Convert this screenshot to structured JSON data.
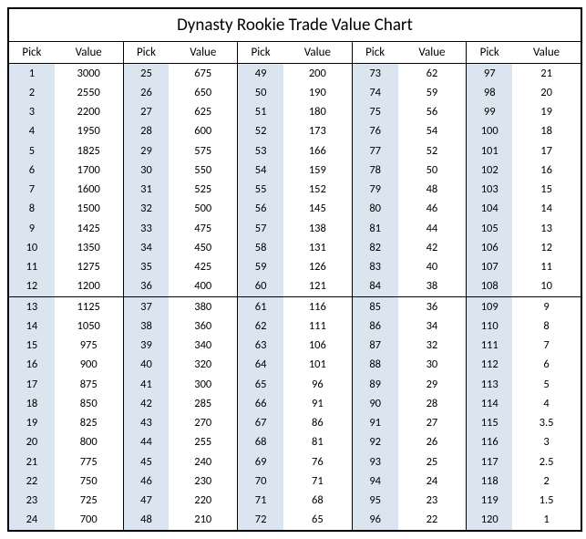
{
  "title": "Dynasty Rookie Trade Value Chart",
  "header_labels": {
    "pick": "Pick",
    "value": "Value"
  },
  "table": {
    "type": "table",
    "background_color": "#ffffff",
    "pick_col_bg": "#dae5f0",
    "border_color": "#000000",
    "title_fontsize": 19,
    "header_fontsize": 13,
    "cell_fontsize": 12.5,
    "num_column_pairs": 5,
    "rows_per_column": 24,
    "divider_after_row_index": 11,
    "columns": [
      [
        {
          "pick": 1,
          "value": 3000
        },
        {
          "pick": 2,
          "value": 2550
        },
        {
          "pick": 3,
          "value": 2200
        },
        {
          "pick": 4,
          "value": 1950
        },
        {
          "pick": 5,
          "value": 1825
        },
        {
          "pick": 6,
          "value": 1700
        },
        {
          "pick": 7,
          "value": 1600
        },
        {
          "pick": 8,
          "value": 1500
        },
        {
          "pick": 9,
          "value": 1425
        },
        {
          "pick": 10,
          "value": 1350
        },
        {
          "pick": 11,
          "value": 1275
        },
        {
          "pick": 12,
          "value": 1200
        },
        {
          "pick": 13,
          "value": 1125
        },
        {
          "pick": 14,
          "value": 1050
        },
        {
          "pick": 15,
          "value": 975
        },
        {
          "pick": 16,
          "value": 900
        },
        {
          "pick": 17,
          "value": 875
        },
        {
          "pick": 18,
          "value": 850
        },
        {
          "pick": 19,
          "value": 825
        },
        {
          "pick": 20,
          "value": 800
        },
        {
          "pick": 21,
          "value": 775
        },
        {
          "pick": 22,
          "value": 750
        },
        {
          "pick": 23,
          "value": 725
        },
        {
          "pick": 24,
          "value": 700
        }
      ],
      [
        {
          "pick": 25,
          "value": 675
        },
        {
          "pick": 26,
          "value": 650
        },
        {
          "pick": 27,
          "value": 625
        },
        {
          "pick": 28,
          "value": 600
        },
        {
          "pick": 29,
          "value": 575
        },
        {
          "pick": 30,
          "value": 550
        },
        {
          "pick": 31,
          "value": 525
        },
        {
          "pick": 32,
          "value": 500
        },
        {
          "pick": 33,
          "value": 475
        },
        {
          "pick": 34,
          "value": 450
        },
        {
          "pick": 35,
          "value": 425
        },
        {
          "pick": 36,
          "value": 400
        },
        {
          "pick": 37,
          "value": 380
        },
        {
          "pick": 38,
          "value": 360
        },
        {
          "pick": 39,
          "value": 340
        },
        {
          "pick": 40,
          "value": 320
        },
        {
          "pick": 41,
          "value": 300
        },
        {
          "pick": 42,
          "value": 285
        },
        {
          "pick": 43,
          "value": 270
        },
        {
          "pick": 44,
          "value": 255
        },
        {
          "pick": 45,
          "value": 240
        },
        {
          "pick": 46,
          "value": 230
        },
        {
          "pick": 47,
          "value": 220
        },
        {
          "pick": 48,
          "value": 210
        }
      ],
      [
        {
          "pick": 49,
          "value": 200
        },
        {
          "pick": 50,
          "value": 190
        },
        {
          "pick": 51,
          "value": 180
        },
        {
          "pick": 52,
          "value": 173
        },
        {
          "pick": 53,
          "value": 166
        },
        {
          "pick": 54,
          "value": 159
        },
        {
          "pick": 55,
          "value": 152
        },
        {
          "pick": 56,
          "value": 145
        },
        {
          "pick": 57,
          "value": 138
        },
        {
          "pick": 58,
          "value": 131
        },
        {
          "pick": 59,
          "value": 126
        },
        {
          "pick": 60,
          "value": 121
        },
        {
          "pick": 61,
          "value": 116
        },
        {
          "pick": 62,
          "value": 111
        },
        {
          "pick": 63,
          "value": 106
        },
        {
          "pick": 64,
          "value": 101
        },
        {
          "pick": 65,
          "value": 96
        },
        {
          "pick": 66,
          "value": 91
        },
        {
          "pick": 67,
          "value": 86
        },
        {
          "pick": 68,
          "value": 81
        },
        {
          "pick": 69,
          "value": 76
        },
        {
          "pick": 70,
          "value": 71
        },
        {
          "pick": 71,
          "value": 68
        },
        {
          "pick": 72,
          "value": 65
        }
      ],
      [
        {
          "pick": 73,
          "value": 62
        },
        {
          "pick": 74,
          "value": 59
        },
        {
          "pick": 75,
          "value": 56
        },
        {
          "pick": 76,
          "value": 54
        },
        {
          "pick": 77,
          "value": 52
        },
        {
          "pick": 78,
          "value": 50
        },
        {
          "pick": 79,
          "value": 48
        },
        {
          "pick": 80,
          "value": 46
        },
        {
          "pick": 81,
          "value": 44
        },
        {
          "pick": 82,
          "value": 42
        },
        {
          "pick": 83,
          "value": 40
        },
        {
          "pick": 84,
          "value": 38
        },
        {
          "pick": 85,
          "value": 36
        },
        {
          "pick": 86,
          "value": 34
        },
        {
          "pick": 87,
          "value": 32
        },
        {
          "pick": 88,
          "value": 30
        },
        {
          "pick": 89,
          "value": 29
        },
        {
          "pick": 90,
          "value": 28
        },
        {
          "pick": 91,
          "value": 27
        },
        {
          "pick": 92,
          "value": 26
        },
        {
          "pick": 93,
          "value": 25
        },
        {
          "pick": 94,
          "value": 24
        },
        {
          "pick": 95,
          "value": 23
        },
        {
          "pick": 96,
          "value": 22
        }
      ],
      [
        {
          "pick": 97,
          "value": 21
        },
        {
          "pick": 98,
          "value": 20
        },
        {
          "pick": 99,
          "value": 19
        },
        {
          "pick": 100,
          "value": 18
        },
        {
          "pick": 101,
          "value": 17
        },
        {
          "pick": 102,
          "value": 16
        },
        {
          "pick": 103,
          "value": 15
        },
        {
          "pick": 104,
          "value": 14
        },
        {
          "pick": 105,
          "value": 13
        },
        {
          "pick": 106,
          "value": 12
        },
        {
          "pick": 107,
          "value": 11
        },
        {
          "pick": 108,
          "value": 10
        },
        {
          "pick": 109,
          "value": 9
        },
        {
          "pick": 110,
          "value": 8
        },
        {
          "pick": 111,
          "value": 7
        },
        {
          "pick": 112,
          "value": 6
        },
        {
          "pick": 113,
          "value": 5
        },
        {
          "pick": 114,
          "value": 4
        },
        {
          "pick": 115,
          "value": 3.5
        },
        {
          "pick": 116,
          "value": 3
        },
        {
          "pick": 117,
          "value": 2.5
        },
        {
          "pick": 118,
          "value": 2
        },
        {
          "pick": 119,
          "value": 1.5
        },
        {
          "pick": 120,
          "value": 1
        }
      ]
    ]
  }
}
